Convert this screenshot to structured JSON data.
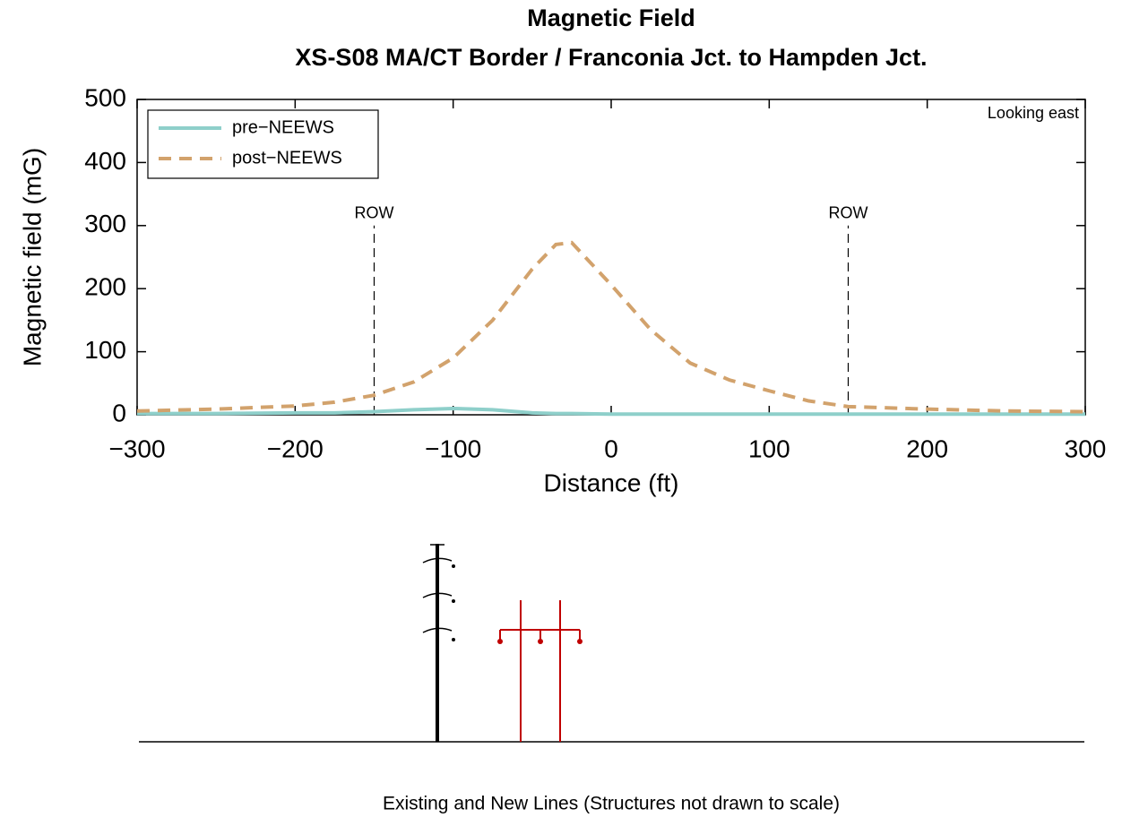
{
  "chart_data": {
    "type": "line",
    "title": "Magnetic Field",
    "subtitle": "XS-S08 MA/CT Border / Franconia Jct. to Hampden Jct.",
    "x_label": "Distance (ft)",
    "y_label": "Magnetic field (mG)",
    "annotation": "Looking east",
    "caption": "Existing and New Lines (Structures not drawn to scale)",
    "row_lines": {
      "label": "ROW",
      "x": [
        -150,
        150
      ],
      "height": 300
    },
    "x": [
      -300,
      -250,
      -200,
      -175,
      -150,
      -125,
      -100,
      -75,
      -50,
      -35,
      -25,
      0,
      25,
      50,
      75,
      100,
      125,
      150,
      200,
      250,
      300
    ],
    "series": [
      {
        "name": "pre−NEEWS",
        "color": "#8ecfca",
        "dash": false,
        "values": [
          2,
          2,
          3,
          3,
          5,
          8,
          10,
          8,
          3,
          2,
          2,
          1,
          1,
          1,
          1,
          1,
          1,
          1,
          1,
          1,
          1
        ]
      },
      {
        "name": "post−NEEWS",
        "color": "#d2a26c",
        "dash": true,
        "values": [
          6,
          9,
          14,
          20,
          31,
          52,
          90,
          150,
          231,
          270,
          273,
          206,
          135,
          82,
          55,
          38,
          22,
          13,
          9,
          6,
          5
        ]
      }
    ],
    "xlim": [
      -300,
      300
    ],
    "ylim": [
      0,
      500
    ],
    "xticks": [
      {
        "value": -300,
        "label": "−300"
      },
      {
        "value": -200,
        "label": "−200"
      },
      {
        "value": -100,
        "label": "−100"
      },
      0,
      100,
      200,
      300
    ],
    "yticks": [
      0,
      100,
      200,
      300,
      400,
      500
    ],
    "legend": "upper left",
    "grid": false
  }
}
